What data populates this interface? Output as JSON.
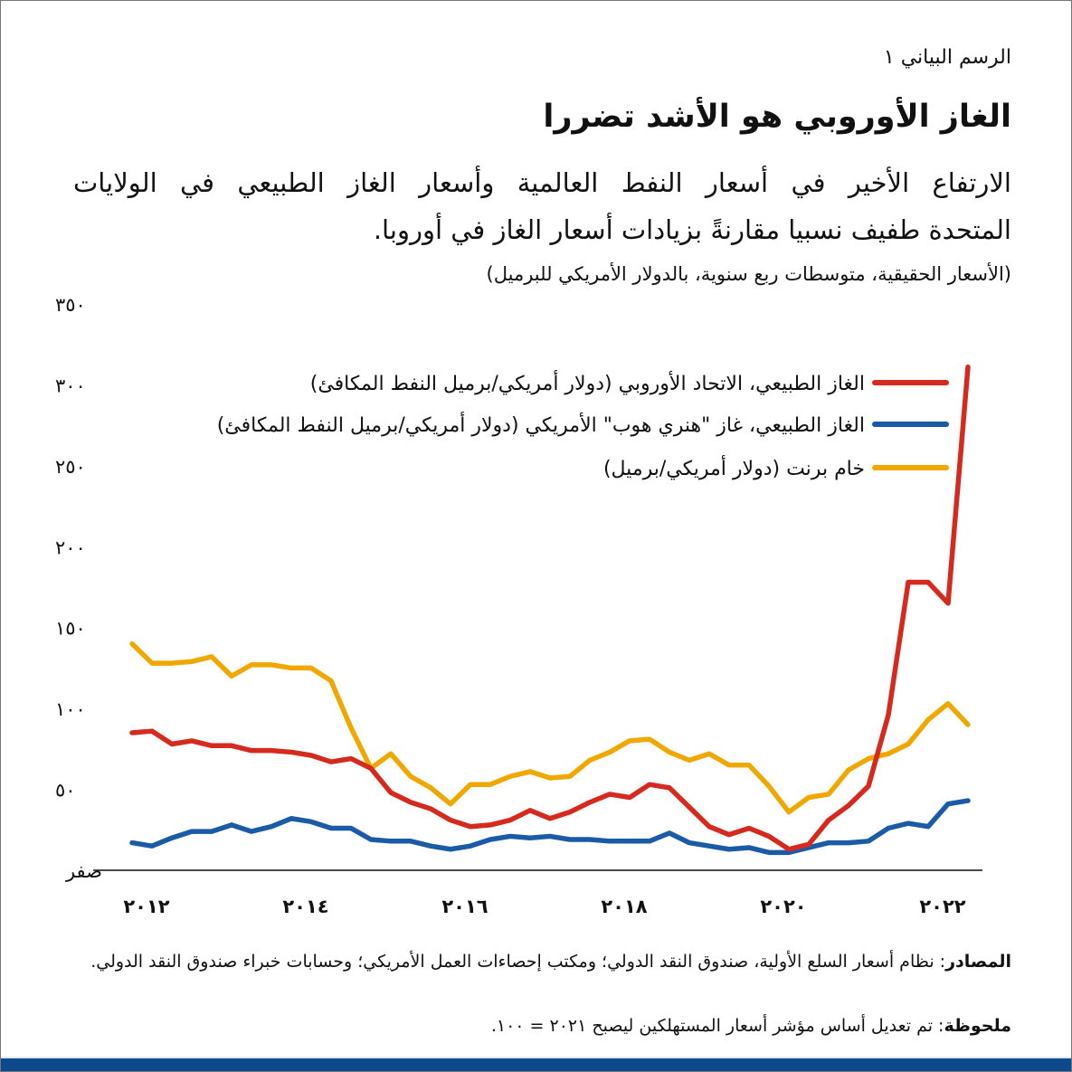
{
  "header": {
    "chart_label": "الرسم البياني ١",
    "title": "الغاز الأوروبي هو الأشد تضررا",
    "subtitle_line1": "الارتفاع الأخير في أسعار النفط العالمية وأسعار الغاز الطبيعي في الولايات",
    "subtitle_line2": "المتحدة طفيف نسبيا مقارنةً بزيادات أسعار الغاز في أوروبا.",
    "units": "(الأسعار الحقيقية، متوسطات ربع سنوية، بالدولار الأمريكي للبرميل)"
  },
  "footer": {
    "source_label": "المصادر",
    "source_text": ": نظام أسعار السلع الأولية، صندوق النقد الدولي؛ ومكتب إحصاءات العمل الأمريكي؛ وحسابات خبراء صندوق النقد الدولي.",
    "note_label": "ملحوظة",
    "note_text": ": تم تعديل أساس مؤشر أسعار المستهلكين ليصبح ٢٠٢١ = ١٠٠."
  },
  "chart_data": {
    "type": "line",
    "x_start": "2012Q1",
    "x_frequency": "quarterly",
    "x_end": "2022Q3",
    "x_tick_labels": [
      "٢٠١٢",
      "٢٠١٤",
      "٢٠١٦",
      "٢٠١٨",
      "٢٠٢٠",
      "٢٠٢٢"
    ],
    "x_tick_years": [
      2012,
      2014,
      2016,
      2018,
      2020,
      2022
    ],
    "y_tick_labels": [
      "صفر",
      "٥٠",
      "١٠٠",
      "١٥٠",
      "٢٠٠",
      "٢٥٠",
      "٣٠٠",
      "٣٥٠"
    ],
    "y_ticks": [
      0,
      50,
      100,
      150,
      200,
      250,
      300,
      350
    ],
    "ylim": [
      0,
      350
    ],
    "grid": false,
    "legend_position": "top-right",
    "series": [
      {
        "name": "الغاز الطبيعي، الاتحاد الأوروبي (دولار أمريكي/برميل النفط المكافئ)",
        "color": "#d62a1e",
        "values": [
          85,
          86,
          78,
          80,
          77,
          77,
          74,
          74,
          73,
          71,
          67,
          69,
          63,
          48,
          42,
          38,
          31,
          27,
          28,
          31,
          37,
          32,
          36,
          42,
          47,
          45,
          53,
          51,
          39,
          27,
          22,
          26,
          21,
          13,
          16,
          31,
          40,
          52,
          96,
          178,
          178,
          165,
          311
        ]
      },
      {
        "name": "الغاز الطبيعي، غاز \"هنري هوب\" الأمريكي (دولار أمريكي/برميل النفط المكافئ)",
        "color": "#1a5aa6",
        "values": [
          17,
          15,
          20,
          24,
          24,
          28,
          24,
          27,
          32,
          30,
          26,
          26,
          19,
          18,
          18,
          15,
          13,
          15,
          19,
          21,
          20,
          21,
          19,
          19,
          18,
          18,
          18,
          23,
          17,
          15,
          13,
          14,
          11,
          11,
          14,
          17,
          17,
          18,
          26,
          29,
          27,
          41,
          43
        ]
      },
      {
        "name": "خام برنت (دولار أمريكي/برميل)",
        "color": "#f0a800",
        "values": [
          140,
          128,
          128,
          129,
          132,
          120,
          127,
          127,
          125,
          125,
          117,
          88,
          63,
          72,
          58,
          51,
          41,
          53,
          53,
          58,
          61,
          57,
          58,
          68,
          73,
          80,
          81,
          73,
          68,
          72,
          65,
          65,
          52,
          36,
          45,
          47,
          62,
          69,
          72,
          78,
          93,
          103,
          90
        ]
      }
    ]
  }
}
